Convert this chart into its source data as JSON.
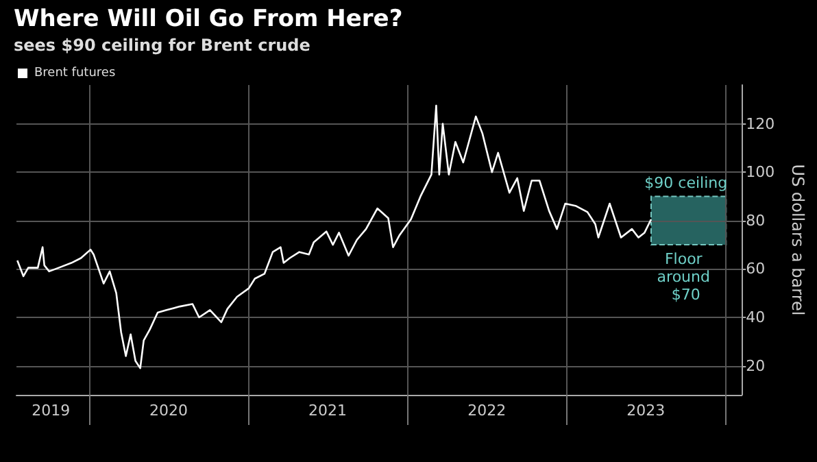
{
  "chart_data": {
    "type": "line",
    "title": "Where Will Oil Go From Here?",
    "subtitle": "sees $90 ceiling for Brent crude",
    "ylabel": "US dollars a barrel",
    "x": [
      "2019-07-20",
      "2019-08-03",
      "2019-08-14",
      "2019-09-05",
      "2019-09-16",
      "2019-09-20",
      "2019-10-01",
      "2019-10-23",
      "2019-11-21",
      "2019-12-13",
      "2020-01-04",
      "2020-01-11",
      "2020-02-03",
      "2020-02-17",
      "2020-03-03",
      "2020-03-14",
      "2020-03-25",
      "2020-04-05",
      "2020-04-16",
      "2020-04-27",
      "2020-05-05",
      "2020-05-19",
      "2020-06-06",
      "2020-06-25",
      "2020-07-27",
      "2020-08-25",
      "2020-09-09",
      "2020-10-04",
      "2020-10-30",
      "2020-11-13",
      "2020-12-05",
      "2021-01-01",
      "2021-01-15",
      "2021-02-06",
      "2021-02-25",
      "2021-03-15",
      "2021-03-22",
      "2021-04-05",
      "2021-04-27",
      "2021-05-19",
      "2021-05-30",
      "2021-06-28",
      "2021-07-13",
      "2021-07-27",
      "2021-08-18",
      "2021-09-06",
      "2021-09-27",
      "2021-10-23",
      "2021-11-17",
      "2021-11-28",
      "2021-12-13",
      "2022-01-08",
      "2022-01-30",
      "2022-02-24",
      "2022-03-07",
      "2022-03-14",
      "2022-03-22",
      "2022-04-05",
      "2022-04-20",
      "2022-05-08",
      "2022-06-06",
      "2022-06-21",
      "2022-07-13",
      "2022-07-27",
      "2022-08-22",
      "2022-09-09",
      "2022-09-24",
      "2022-10-12",
      "2022-10-30",
      "2022-11-21",
      "2022-12-09",
      "2022-12-28",
      "2023-01-22",
      "2023-02-17",
      "2023-03-07",
      "2023-03-14",
      "2023-04-09",
      "2023-05-05",
      "2023-05-30",
      "2023-06-14",
      "2023-06-28",
      "2023-07-13"
    ],
    "series": [
      {
        "name": "Brent futures",
        "color": "#ffffff",
        "values": [
          63.5,
          57,
          60.5,
          60.5,
          69,
          61.5,
          59,
          60.5,
          62.5,
          64.5,
          68,
          66,
          54,
          59,
          50,
          34,
          24,
          33,
          22,
          19,
          30.5,
          35,
          42,
          43,
          44.5,
          45.5,
          40,
          43,
          38,
          43.5,
          48.5,
          52,
          56,
          58,
          67,
          69,
          62.5,
          64.5,
          67,
          66,
          71,
          75.5,
          70,
          75,
          65.5,
          72,
          76.5,
          85,
          81,
          69,
          74,
          80.5,
          90,
          99,
          127.5,
          99,
          120,
          99,
          112.5,
          104,
          123,
          116,
          100,
          108,
          91.5,
          97.5,
          84,
          96.5,
          96.5,
          84,
          76.5,
          87,
          86,
          83.5,
          78.5,
          73,
          87,
          73,
          76.5,
          73,
          75,
          80.5
        ]
      }
    ],
    "xlim": [
      "2019-07-18",
      "2024-02-06"
    ],
    "xticks": [
      {
        "value": "2019-10-05",
        "label": "2019"
      },
      {
        "value": "2020-01-01",
        "label": null
      },
      {
        "value": "2020-07-01",
        "label": "2020"
      },
      {
        "value": "2021-01-01",
        "label": null
      },
      {
        "value": "2021-07-01",
        "label": "2021"
      },
      {
        "value": "2022-01-01",
        "label": null
      },
      {
        "value": "2022-07-01",
        "label": "2022"
      },
      {
        "value": "2023-01-01",
        "label": null
      },
      {
        "value": "2023-07-01",
        "label": "2023"
      },
      {
        "value": "2024-01-01",
        "label": null
      }
    ],
    "ylim": [
      8,
      136
    ],
    "yticks": [
      20,
      40,
      60,
      80,
      100,
      120
    ],
    "bands": [
      {
        "axis": "y",
        "from": 70,
        "to": 90,
        "color": "#2a6e6a"
      }
    ],
    "annotations": [
      {
        "text": "$90 ceiling",
        "x": "2023-10-01",
        "y": 90
      },
      {
        "text": "Floor around $70",
        "x": "2023-10-01",
        "y": 70
      }
    ],
    "grid": true,
    "legend": "top left",
    "marker": "none",
    "line_style": "solid"
  }
}
